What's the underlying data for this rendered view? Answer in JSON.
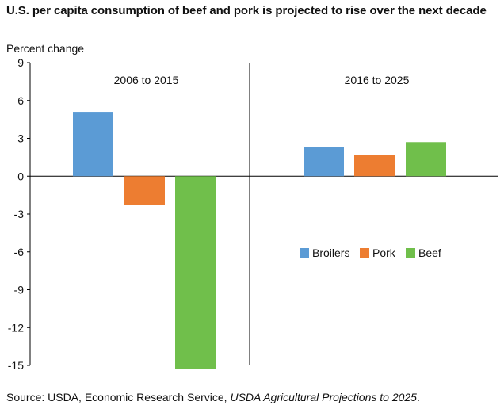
{
  "chart_data": {
    "type": "bar",
    "title": "U.S. per capita consumption of beef and pork is projected to rise over the next decade",
    "ylabel": "Percent change",
    "ylim": [
      -15,
      9
    ],
    "yticks": [
      9,
      6,
      3,
      0,
      -3,
      -6,
      -9,
      -12,
      -15
    ],
    "categories": [
      "2006 to 2015",
      "2016 to 2025"
    ],
    "series": [
      {
        "name": "Broilers",
        "color": "#5b9bd5",
        "values": [
          5.1,
          2.3
        ]
      },
      {
        "name": "Pork",
        "color": "#ed7d31",
        "values": [
          -2.3,
          1.7
        ]
      },
      {
        "name": "Beef",
        "color": "#70bf4b",
        "values": [
          -15.3,
          2.7
        ]
      }
    ],
    "legend_position": "center-right",
    "grid": false
  },
  "source": {
    "prefix": "Source: USDA, Economic Research Service, ",
    "publication": "USDA Agricultural Projections to 2025",
    "suffix": "."
  }
}
